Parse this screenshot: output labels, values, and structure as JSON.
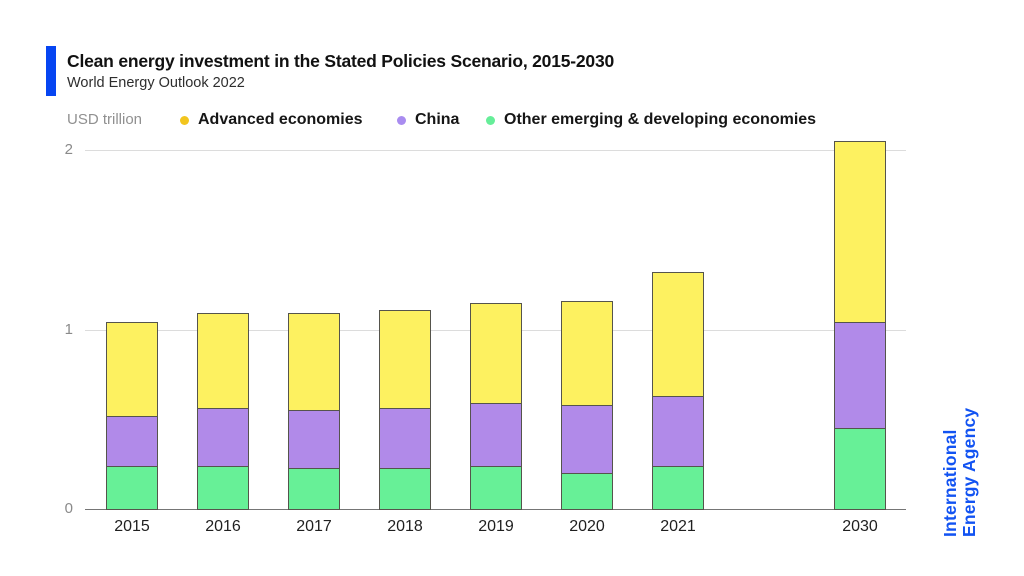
{
  "header": {
    "title": "Clean energy investment in the Stated Policies Scenario, 2015-2030",
    "subtitle": "World Energy Outlook 2022"
  },
  "legend": {
    "axis_unit": "USD trillion",
    "items": [
      {
        "label": "Advanced economies",
        "dot_color": "#f2c51e"
      },
      {
        "label": "China",
        "dot_color": "#a98cf0"
      },
      {
        "label": "Other emerging & developing economies",
        "dot_color": "#66ee99"
      }
    ]
  },
  "logo": {
    "line1": "International",
    "line2": "Energy Agency",
    "color": "#1253f2"
  },
  "colors": {
    "accent_blue": "#0645f2",
    "advanced_economies": "#fdf160",
    "china": "#b18ae9",
    "other_emerging": "#67f097",
    "bar_outline": "#55544c",
    "gridline": "#dcdcdc",
    "zero_axis": "#757575"
  },
  "chart_data": {
    "type": "bar",
    "stacked": true,
    "title": "Clean energy investment in the Stated Policies Scenario, 2015-2030",
    "subtitle": "World Energy Outlook 2022",
    "unit": "USD trillion",
    "categories": [
      "2015",
      "2016",
      "2017",
      "2018",
      "2019",
      "2020",
      "2021",
      "2030"
    ],
    "series": [
      {
        "name": "Other emerging & developing economies",
        "color": "#67f097",
        "values": [
          0.24,
          0.24,
          0.23,
          0.23,
          0.24,
          0.2,
          0.24,
          0.45
        ]
      },
      {
        "name": "China",
        "color": "#b18ae9",
        "values": [
          0.28,
          0.32,
          0.32,
          0.33,
          0.35,
          0.38,
          0.39,
          0.59
        ]
      },
      {
        "name": "Advanced economies",
        "color": "#fdf160",
        "values": [
          0.52,
          0.53,
          0.54,
          0.55,
          0.56,
          0.58,
          0.69,
          1.01
        ]
      }
    ],
    "totals": [
      1.04,
      1.09,
      1.09,
      1.11,
      1.15,
      1.16,
      1.32,
      2.05
    ],
    "ylim": [
      0,
      2.1
    ],
    "yticks": [
      0,
      1,
      2
    ],
    "grid": "horizontal",
    "legend_position": "top",
    "legend_order": [
      "Advanced economies",
      "China",
      "Other emerging & developing economies"
    ]
  }
}
